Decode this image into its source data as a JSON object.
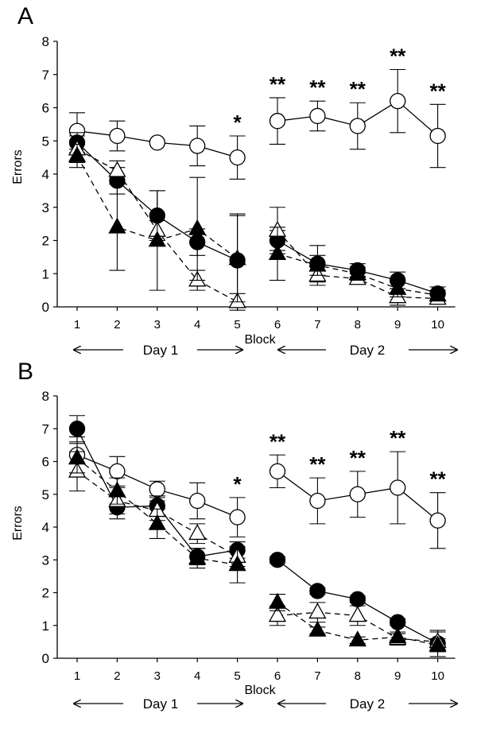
{
  "chart_data": [
    {
      "type": "line",
      "panel_label": "A",
      "xlabel": "Block",
      "ylabel": "Errors",
      "categories": [
        "1",
        "2",
        "3",
        "4",
        "5",
        "6",
        "7",
        "8",
        "9",
        "10"
      ],
      "ylim": [
        0,
        8
      ],
      "yticks": [
        "0",
        "1",
        "2",
        "3",
        "4",
        "5",
        "6",
        "7",
        "8"
      ],
      "day_labels": [
        "Day 1",
        "Day 2"
      ],
      "significance": [
        {
          "block": 5,
          "y": 4.5,
          "mark": "*"
        },
        {
          "block": 6,
          "y": 5.6,
          "mark": "**"
        },
        {
          "block": 7,
          "y": 5.75,
          "mark": "**"
        },
        {
          "block": 8,
          "y": 5.45,
          "mark": "**"
        },
        {
          "block": 9,
          "y": 6.2,
          "mark": "**"
        },
        {
          "block": 10,
          "y": 5.15,
          "mark": "**"
        }
      ],
      "series": [
        {
          "name": "open circles",
          "marker": "circle",
          "fill": "none",
          "dash": "solid",
          "values": [
            5.3,
            5.15,
            4.95,
            4.85,
            4.5,
            5.6,
            5.75,
            5.45,
            6.2,
            5.15
          ],
          "err": [
            0.55,
            0.45,
            0,
            0.6,
            0.65,
            0.7,
            0.45,
            0.7,
            0.95,
            0.95
          ]
        },
        {
          "name": "filled circles",
          "marker": "circle",
          "fill": "black",
          "dash": "solid",
          "values": [
            4.95,
            3.8,
            2.75,
            1.95,
            1.4,
            2.0,
            1.3,
            1.1,
            0.8,
            0.4
          ],
          "err": [
            0.3,
            0.4,
            0.75,
            0.4,
            1.4,
            0.3,
            0.55,
            0.2,
            0.25,
            0.2
          ]
        },
        {
          "name": "open triangles",
          "marker": "triangle",
          "fill": "none",
          "dash": "dashed",
          "values": [
            4.75,
            4.1,
            2.3,
            0.8,
            0.15,
            2.3,
            0.95,
            0.85,
            0.3,
            0.25
          ],
          "err": [
            0.4,
            0.3,
            0.3,
            0.3,
            0.25,
            0.7,
            0.3,
            0.15,
            0.25,
            0.15
          ]
        },
        {
          "name": "filled triangles",
          "marker": "triangle",
          "fill": "black",
          "dash": "dashed",
          "values": [
            4.55,
            2.4,
            2.0,
            2.35,
            1.45,
            1.6,
            1.25,
            1.0,
            0.55,
            0.35
          ],
          "err": [
            0.35,
            1.3,
            1.5,
            1.55,
            1.3,
            0.8,
            0.3,
            0.2,
            0.25,
            0.15
          ]
        }
      ]
    },
    {
      "type": "line",
      "panel_label": "B",
      "xlabel": "Block",
      "ylabel": "Errors",
      "categories": [
        "1",
        "2",
        "3",
        "4",
        "5",
        "6",
        "7",
        "8",
        "9",
        "10"
      ],
      "ylim": [
        0,
        8
      ],
      "yticks": [
        "0",
        "1",
        "2",
        "3",
        "4",
        "5",
        "6",
        "7",
        "8"
      ],
      "day_labels": [
        "Day 1",
        "Day 2"
      ],
      "significance": [
        {
          "block": 5,
          "y": 4.3,
          "mark": "*"
        },
        {
          "block": 6,
          "y": 5.7,
          "mark": "**"
        },
        {
          "block": 7,
          "y": 4.8,
          "mark": "**"
        },
        {
          "block": 8,
          "y": 5.0,
          "mark": "**"
        },
        {
          "block": 9,
          "y": 5.2,
          "mark": "**"
        },
        {
          "block": 10,
          "y": 4.2,
          "mark": "**"
        }
      ],
      "series": [
        {
          "name": "open circles",
          "marker": "circle",
          "fill": "none",
          "dash": "solid",
          "values": [
            6.2,
            5.7,
            5.15,
            4.8,
            4.3,
            5.7,
            4.8,
            5.0,
            5.2,
            4.2
          ],
          "err": [
            0.55,
            0.45,
            0.25,
            0.55,
            0.6,
            0.5,
            0.7,
            0.7,
            1.1,
            0.85
          ]
        },
        {
          "name": "filled circles",
          "marker": "circle",
          "fill": "black",
          "dash": "solid",
          "values": [
            7.0,
            4.6,
            4.65,
            3.1,
            3.3,
            3.0,
            2.05,
            1.8,
            1.1,
            0.45
          ],
          "err": [
            0.4,
            0.35,
            0.3,
            0.25,
            0.25,
            0.1,
            0.1,
            0.1,
            0.1,
            0.4
          ]
        },
        {
          "name": "open triangles",
          "marker": "triangle",
          "fill": "none",
          "dash": "dashed",
          "values": [
            5.7,
            4.8,
            4.5,
            3.8,
            3.1,
            1.3,
            1.4,
            1.3,
            0.6,
            0.5
          ],
          "err": [
            0.6,
            0.4,
            0.3,
            0.3,
            0.3,
            0.3,
            0.3,
            0.3,
            0.2,
            0.3
          ]
        },
        {
          "name": "filled triangles",
          "marker": "triangle",
          "fill": "black",
          "dash": "dashed",
          "values": [
            6.1,
            5.1,
            4.1,
            3.05,
            2.85,
            1.7,
            0.85,
            0.55,
            0.65,
            0.4
          ],
          "err": [
            0.45,
            0.4,
            0.45,
            0.3,
            0.55,
            0.25,
            0.1,
            0.1,
            0.1,
            0.2
          ]
        }
      ]
    }
  ]
}
